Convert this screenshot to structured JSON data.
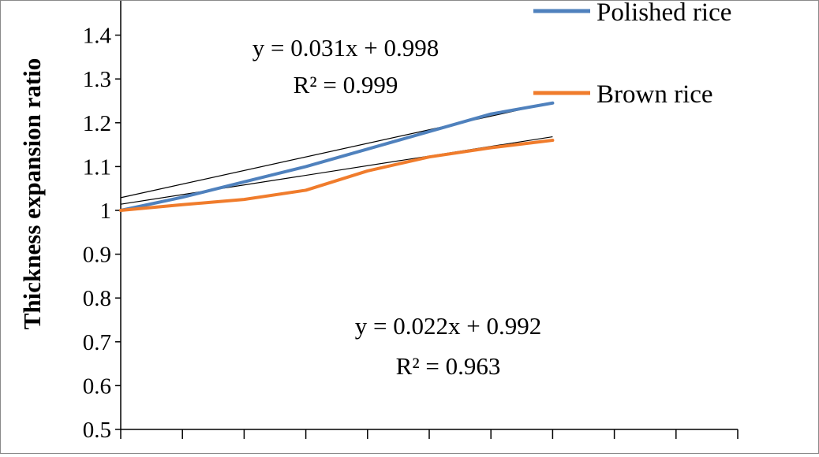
{
  "chart_data": {
    "type": "line",
    "title": "",
    "xlabel": "",
    "ylabel": "Thickness expansion ratio",
    "ylim": [
      0.5,
      1.5
    ],
    "yticks": [
      "0.5",
      "0.6",
      "0.7",
      "0.8",
      "0.9",
      "1",
      "1.1",
      "1.2",
      "1.3",
      "1.4"
    ],
    "x": [
      0,
      1,
      2,
      3,
      4,
      5,
      6,
      7
    ],
    "xlim": [
      0,
      10
    ],
    "grid": false,
    "legend_position": "top-right",
    "series": [
      {
        "name": "Polished rice",
        "color": "#4f81bd",
        "values": [
          1.0,
          1.03,
          1.065,
          1.1,
          1.14,
          1.18,
          1.22,
          1.245
        ]
      },
      {
        "name": "Brown rice",
        "color": "#f07c2c",
        "values": [
          1.0,
          1.013,
          1.025,
          1.046,
          1.09,
          1.122,
          1.143,
          1.16
        ]
      }
    ],
    "trendlines": [
      {
        "series": "Polished rice",
        "slope": 0.031,
        "intercept": 0.998,
        "equation": "y = 0.031x + 0.998",
        "r2": "R² = 0.999"
      },
      {
        "series": "Brown rice",
        "slope": 0.022,
        "intercept": 0.992,
        "equation": "y = 0.022x + 0.992",
        "r2": "R² = 0.963"
      }
    ]
  }
}
